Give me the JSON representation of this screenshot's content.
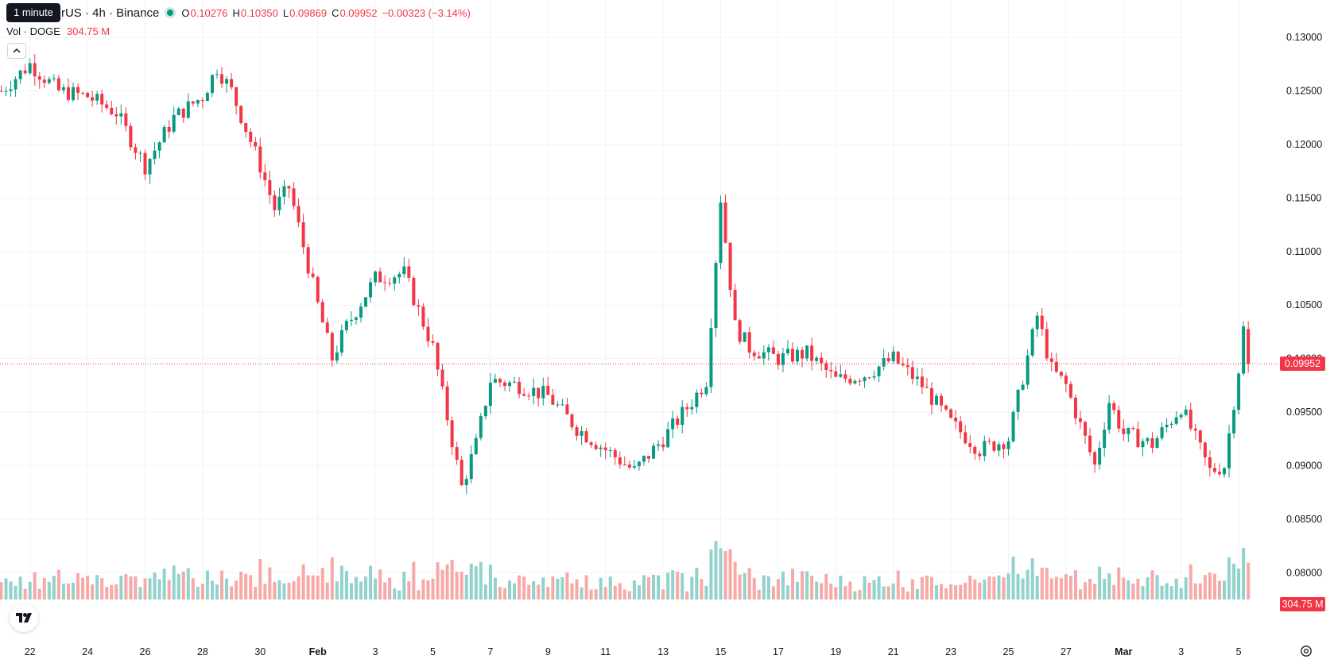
{
  "header": {
    "title": "oin / TetherUS · 4h · Binance",
    "tooltip": "1 minute",
    "ohlc": [
      {
        "key": "O",
        "value": "0.10276"
      },
      {
        "key": "H",
        "value": "0.10350"
      },
      {
        "key": "L",
        "value": "0.09869"
      },
      {
        "key": "C",
        "value": "0.09952"
      }
    ],
    "change": "−0.00323 (−3.14%)"
  },
  "volume_legend": {
    "label": "Vol · DOGE",
    "value": "304.75 M"
  },
  "price_tag": "0.09952",
  "volume_tag": "304.75 M",
  "icons": {
    "logo": "tradingview-logo-icon",
    "settings": "settings-gear-icon",
    "collapse": "chevron-up-icon"
  },
  "colors": {
    "up": "#089981",
    "down": "#f23645",
    "vol_up": "#92d2cc",
    "vol_down": "#f7a9a7",
    "grid": "#f0f3fa",
    "text": "#131722"
  },
  "chart_data": {
    "type": "candlestick",
    "timeframe": "4h",
    "x_tick_labels": [
      "22",
      "24",
      "26",
      "28",
      "30",
      "Feb",
      "3",
      "5",
      "7",
      "9",
      "11",
      "13",
      "15",
      "17",
      "19",
      "21",
      "23",
      "25",
      "27",
      "Mar",
      "3",
      "5"
    ],
    "y_tick_labels": [
      "0.13000",
      "0.12500",
      "0.12000",
      "0.11500",
      "0.11000",
      "0.10500",
      "0.10000",
      "0.09500",
      "0.09000",
      "0.08500",
      "0.08000"
    ],
    "ylim": [
      0.0775,
      0.1335
    ],
    "last_price": 0.09952,
    "last_volume": "304.75 M",
    "anchors": [
      {
        "date": "Jan 21",
        "price": 0.125
      },
      {
        "date": "Jan 22",
        "price": 0.1275
      },
      {
        "date": "Jan 23",
        "price": 0.125
      },
      {
        "date": "Jan 24",
        "price": 0.1245
      },
      {
        "date": "Jan 25",
        "price": 0.123
      },
      {
        "date": "Jan 26",
        "price": 0.118
      },
      {
        "date": "Jan 27",
        "price": 0.1225
      },
      {
        "date": "Jan 28",
        "price": 0.1245
      },
      {
        "date": "Jan 28 12:00",
        "price": 0.1272
      },
      {
        "date": "Jan 29",
        "price": 0.125
      },
      {
        "date": "Jan 30",
        "price": 0.118
      },
      {
        "date": "Jan 30 12:00",
        "price": 0.114
      },
      {
        "date": "Jan 31",
        "price": 0.116
      },
      {
        "date": "Feb 1",
        "price": 0.105
      },
      {
        "date": "Feb 1 12:00",
        "price": 0.1
      },
      {
        "date": "Feb 2",
        "price": 0.103
      },
      {
        "date": "Feb 3",
        "price": 0.1075
      },
      {
        "date": "Feb 4",
        "price": 0.108
      },
      {
        "date": "Feb 5",
        "price": 0.101
      },
      {
        "date": "Feb 6",
        "price": 0.088
      },
      {
        "date": "Feb 6 12:00",
        "price": 0.092
      },
      {
        "date": "Feb 7",
        "price": 0.098
      },
      {
        "date": "Feb 8",
        "price": 0.0975
      },
      {
        "date": "Feb 9",
        "price": 0.0965
      },
      {
        "date": "Feb 10",
        "price": 0.0935
      },
      {
        "date": "Feb 11",
        "price": 0.0915
      },
      {
        "date": "Feb 12",
        "price": 0.0895
      },
      {
        "date": "Feb 13",
        "price": 0.0925
      },
      {
        "date": "Feb 14",
        "price": 0.096
      },
      {
        "date": "Feb 14 12:00",
        "price": 0.098
      },
      {
        "date": "Feb 15",
        "price": 0.115
      },
      {
        "date": "Feb 15 12:00",
        "price": 0.103
      },
      {
        "date": "Feb 16",
        "price": 0.101
      },
      {
        "date": "Feb 17",
        "price": 0.1
      },
      {
        "date": "Feb 18",
        "price": 0.1005
      },
      {
        "date": "Feb 19",
        "price": 0.098
      },
      {
        "date": "Feb 20",
        "price": 0.0985
      },
      {
        "date": "Feb 21",
        "price": 0.1
      },
      {
        "date": "Feb 22",
        "price": 0.0975
      },
      {
        "date": "Feb 23",
        "price": 0.094
      },
      {
        "date": "Feb 24",
        "price": 0.0915
      },
      {
        "date": "Feb 25",
        "price": 0.0925
      },
      {
        "date": "Feb 26",
        "price": 0.104
      },
      {
        "date": "Feb 26 12:00",
        "price": 0.099
      },
      {
        "date": "Feb 27",
        "price": 0.0975
      },
      {
        "date": "Feb 28",
        "price": 0.09
      },
      {
        "date": "Feb 28 12:00",
        "price": 0.096
      },
      {
        "date": "Mar 1",
        "price": 0.093
      },
      {
        "date": "Mar 2",
        "price": 0.092
      },
      {
        "date": "Mar 3",
        "price": 0.0955
      },
      {
        "date": "Mar 4",
        "price": 0.0895
      },
      {
        "date": "Mar 4 12:00",
        "price": 0.09
      },
      {
        "date": "Mar 5",
        "price": 0.099
      },
      {
        "date": "Mar 5 04:00",
        "price": 0.10276
      },
      {
        "date": "Mar 5 08:00",
        "price": 0.09952
      }
    ]
  }
}
